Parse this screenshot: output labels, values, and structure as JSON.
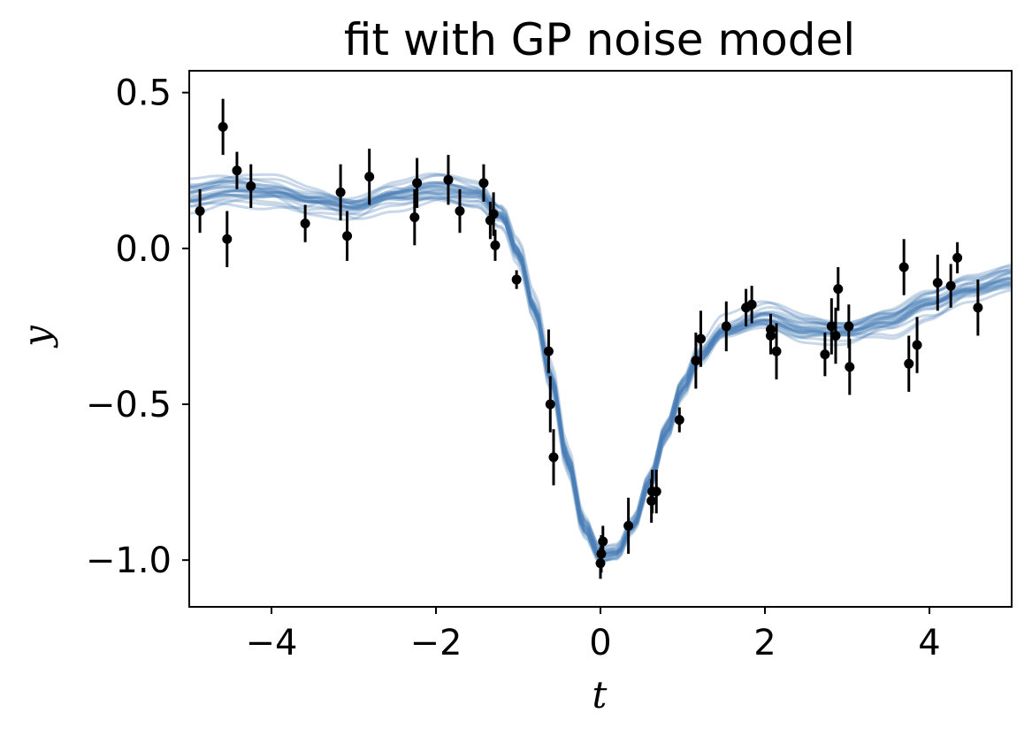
{
  "chart_data": {
    "type": "line",
    "title": "fit with GP noise model",
    "xlabel": "t",
    "ylabel": "y",
    "xlim": [
      -5,
      5
    ],
    "ylim": [
      -1.15,
      0.57
    ],
    "xticks": [
      -4,
      -2,
      0,
      2,
      4
    ],
    "xtick_labels": [
      "−4",
      "−2",
      "0",
      "2",
      "4"
    ],
    "yticks": [
      0.5,
      0.0,
      -0.5,
      -1.0
    ],
    "ytick_labels": [
      "0.5",
      "0.0",
      "−0.5",
      "−1.0"
    ],
    "grid": false,
    "legend": "none",
    "colors": {
      "samples": "#4a7fb5",
      "points": "#000000"
    },
    "observations": [
      {
        "t": -4.87,
        "y": 0.12,
        "err": 0.07
      },
      {
        "t": -4.59,
        "y": 0.39,
        "err": 0.09
      },
      {
        "t": -4.54,
        "y": 0.03,
        "err": 0.09
      },
      {
        "t": -4.42,
        "y": 0.25,
        "err": 0.06
      },
      {
        "t": -4.25,
        "y": 0.2,
        "err": 0.07
      },
      {
        "t": -3.59,
        "y": 0.08,
        "err": 0.06
      },
      {
        "t": -3.16,
        "y": 0.18,
        "err": 0.09
      },
      {
        "t": -3.08,
        "y": 0.04,
        "err": 0.08
      },
      {
        "t": -2.81,
        "y": 0.23,
        "err": 0.09
      },
      {
        "t": -2.26,
        "y": 0.1,
        "err": 0.09
      },
      {
        "t": -2.23,
        "y": 0.21,
        "err": 0.08
      },
      {
        "t": -1.85,
        "y": 0.22,
        "err": 0.08
      },
      {
        "t": -1.71,
        "y": 0.12,
        "err": 0.07
      },
      {
        "t": -1.42,
        "y": 0.21,
        "err": 0.06
      },
      {
        "t": -1.34,
        "y": 0.09,
        "err": 0.06
      },
      {
        "t": -1.3,
        "y": 0.11,
        "err": 0.07
      },
      {
        "t": -1.28,
        "y": 0.01,
        "err": 0.05
      },
      {
        "t": -1.02,
        "y": -0.1,
        "err": 0.03
      },
      {
        "t": -0.63,
        "y": -0.33,
        "err": 0.07
      },
      {
        "t": -0.61,
        "y": -0.5,
        "err": 0.09
      },
      {
        "t": -0.57,
        "y": -0.67,
        "err": 0.09
      },
      {
        "t": 0.0,
        "y": -1.01,
        "err": 0.05
      },
      {
        "t": 0.01,
        "y": -0.98,
        "err": 0.06
      },
      {
        "t": 0.03,
        "y": -0.94,
        "err": 0.05
      },
      {
        "t": 0.34,
        "y": -0.89,
        "err": 0.09
      },
      {
        "t": 0.62,
        "y": -0.81,
        "err": 0.07
      },
      {
        "t": 0.63,
        "y": -0.78,
        "err": 0.07
      },
      {
        "t": 0.68,
        "y": -0.78,
        "err": 0.07
      },
      {
        "t": 0.96,
        "y": -0.55,
        "err": 0.04
      },
      {
        "t": 1.16,
        "y": -0.36,
        "err": 0.09
      },
      {
        "t": 1.22,
        "y": -0.29,
        "err": 0.09
      },
      {
        "t": 1.53,
        "y": -0.25,
        "err": 0.08
      },
      {
        "t": 1.77,
        "y": -0.19,
        "err": 0.06
      },
      {
        "t": 1.84,
        "y": -0.18,
        "err": 0.06
      },
      {
        "t": 2.07,
        "y": -0.26,
        "err": 0.05
      },
      {
        "t": 2.07,
        "y": -0.28,
        "err": 0.06
      },
      {
        "t": 2.14,
        "y": -0.33,
        "err": 0.09
      },
      {
        "t": 2.73,
        "y": -0.34,
        "err": 0.07
      },
      {
        "t": 2.81,
        "y": -0.25,
        "err": 0.09
      },
      {
        "t": 2.86,
        "y": -0.28,
        "err": 0.09
      },
      {
        "t": 2.89,
        "y": -0.13,
        "err": 0.07
      },
      {
        "t": 3.02,
        "y": -0.25,
        "err": 0.07
      },
      {
        "t": 3.03,
        "y": -0.38,
        "err": 0.09
      },
      {
        "t": 3.69,
        "y": -0.06,
        "err": 0.09
      },
      {
        "t": 3.75,
        "y": -0.37,
        "err": 0.09
      },
      {
        "t": 3.85,
        "y": -0.31,
        "err": 0.09
      },
      {
        "t": 4.1,
        "y": -0.11,
        "err": 0.09
      },
      {
        "t": 4.26,
        "y": -0.12,
        "err": 0.07
      },
      {
        "t": 4.34,
        "y": -0.03,
        "err": 0.05
      },
      {
        "t": 4.59,
        "y": -0.19,
        "err": 0.09
      }
    ],
    "mean_curve": {
      "t": [
        -5.0,
        -4.5,
        -4.0,
        -3.5,
        -3.0,
        -2.5,
        -2.0,
        -1.5,
        -1.2,
        -1.0,
        -0.8,
        -0.6,
        -0.4,
        -0.2,
        0.0,
        0.2,
        0.4,
        0.6,
        0.8,
        1.0,
        1.2,
        1.5,
        2.0,
        2.5,
        3.0,
        3.5,
        4.0,
        4.5,
        5.0
      ],
      "y": [
        0.17,
        0.19,
        0.18,
        0.15,
        0.13,
        0.17,
        0.19,
        0.17,
        0.1,
        -0.02,
        -0.2,
        -0.42,
        -0.68,
        -0.89,
        -0.98,
        -0.97,
        -0.88,
        -0.74,
        -0.58,
        -0.44,
        -0.34,
        -0.26,
        -0.22,
        -0.26,
        -0.27,
        -0.24,
        -0.18,
        -0.13,
        -0.1
      ]
    },
    "sample_count": 24
  }
}
